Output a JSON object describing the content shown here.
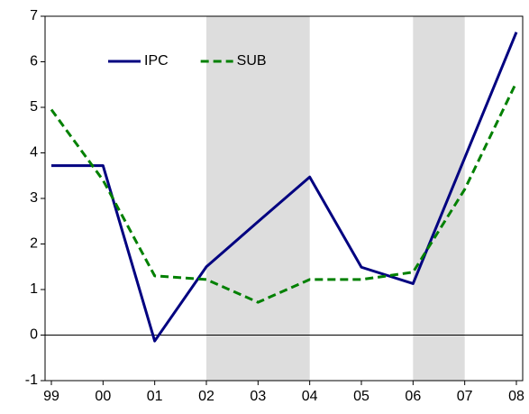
{
  "chart_data": {
    "type": "line",
    "categories": [
      "99",
      "00",
      "01",
      "02",
      "03",
      "04",
      "05",
      "06",
      "07",
      "08"
    ],
    "series": [
      {
        "name": "IPC",
        "color": "#000080",
        "dash": "solid",
        "values": [
          3.72,
          3.72,
          -0.13,
          1.5,
          2.49,
          3.47,
          1.49,
          1.13,
          3.89,
          6.65
        ]
      },
      {
        "name": "SUB",
        "color": "#008000",
        "dash": "dashed",
        "values": [
          4.95,
          3.4,
          1.3,
          1.22,
          0.72,
          1.22,
          1.22,
          1.38,
          3.2,
          5.55
        ]
      }
    ],
    "ylim": [
      -1,
      7
    ],
    "yticks": [
      -1,
      0,
      1,
      2,
      3,
      4,
      5,
      6,
      7
    ],
    "shaded_spans": [
      [
        3,
        5
      ],
      [
        7,
        8
      ]
    ],
    "shade_color": "#dddddd",
    "zero_line": true,
    "legend": "upper-left"
  }
}
